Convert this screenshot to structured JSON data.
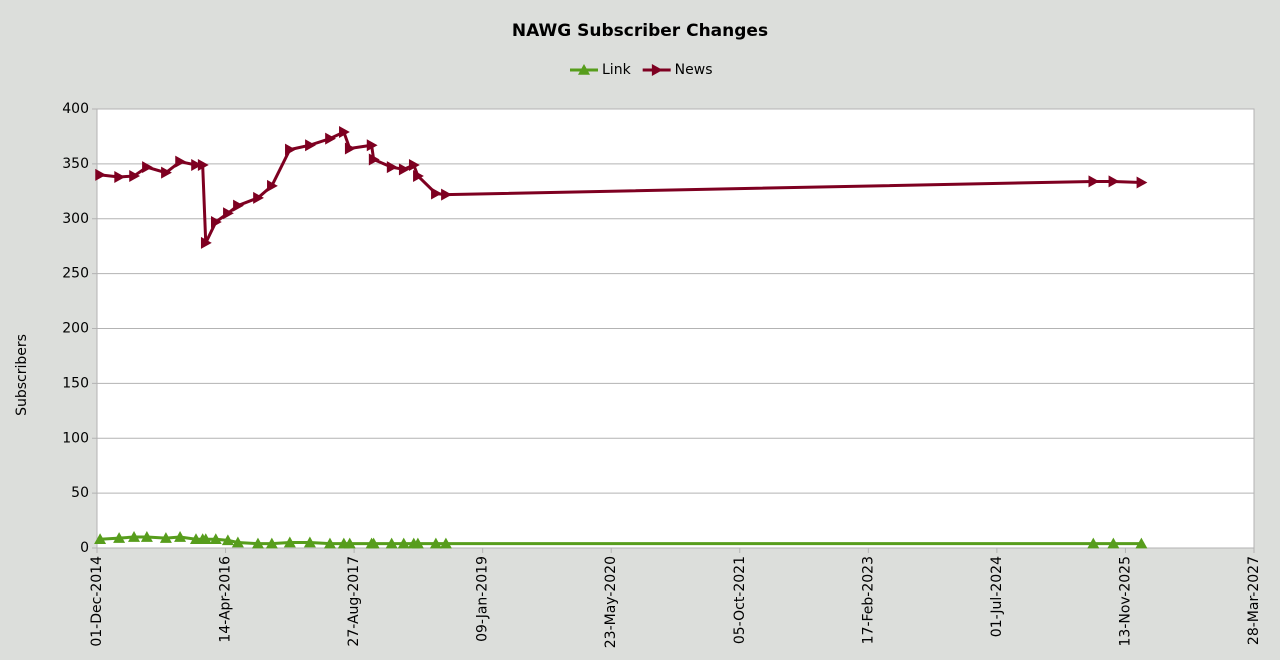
{
  "chart_data": {
    "type": "line",
    "title": "NAWG Subscriber Changes",
    "y_label": "Subscribers",
    "x": [
      "13-Dec-2014",
      "25-Feb-2015",
      "24-Apr-2015",
      "13-Jun-2015",
      "26-Aug-2015",
      "20-Oct-2015",
      "21-Dec-2015",
      "16-Jan-2016",
      "28-Jan-2016",
      "07-Mar-2016",
      "23-Apr-2016",
      "01-Jun-2016",
      "18-Aug-2016",
      "11-Oct-2016",
      "20-Dec-2016",
      "08-Mar-2017",
      "25-May-2017",
      "18-Jul-2017",
      "10-Aug-2017",
      "03-Nov-2017",
      "11-Nov-2017",
      "20-Jan-2018",
      "08-Mar-2018",
      "16-Apr-2018",
      "02-May-2018",
      "11-Jul-2018",
      "19-Aug-2018",
      "11-Jul-2025",
      "27-Sep-2025",
      "14-Jan-2026"
    ],
    "series": [
      {
        "name": "Link",
        "color": "#579d1c",
        "marker": "triangle-up",
        "values": [
          8,
          9,
          10,
          10,
          9,
          10,
          8,
          8,
          8,
          8,
          7,
          5,
          4,
          4,
          5,
          5,
          4,
          4,
          4,
          4,
          4,
          4,
          4,
          4,
          4,
          4,
          4,
          4,
          4,
          4
        ]
      },
      {
        "name": "News",
        "color": "#7e0021",
        "marker": "triangle-right",
        "values": [
          340,
          338,
          339,
          347,
          342,
          352,
          349,
          349,
          278,
          297,
          305,
          312,
          319,
          330,
          363,
          367,
          373,
          379,
          364,
          367,
          354,
          347,
          345,
          349,
          339,
          323,
          322,
          334,
          334,
          333
        ]
      }
    ],
    "xlim": [
      "01-Dec-2014",
      "28-Mar-2027"
    ],
    "xticks": [
      "01-Dec-2014",
      "14-Apr-2016",
      "27-Aug-2017",
      "09-Jan-2019",
      "23-May-2020",
      "05-Oct-2021",
      "17-Feb-2023",
      "01-Jul-2024",
      "13-Nov-2025",
      "28-Mar-2027"
    ],
    "ylim": [
      0,
      400
    ],
    "yticks": [
      0,
      50,
      100,
      150,
      200,
      250,
      300,
      350,
      400
    ],
    "grid": true,
    "legend": "top"
  }
}
